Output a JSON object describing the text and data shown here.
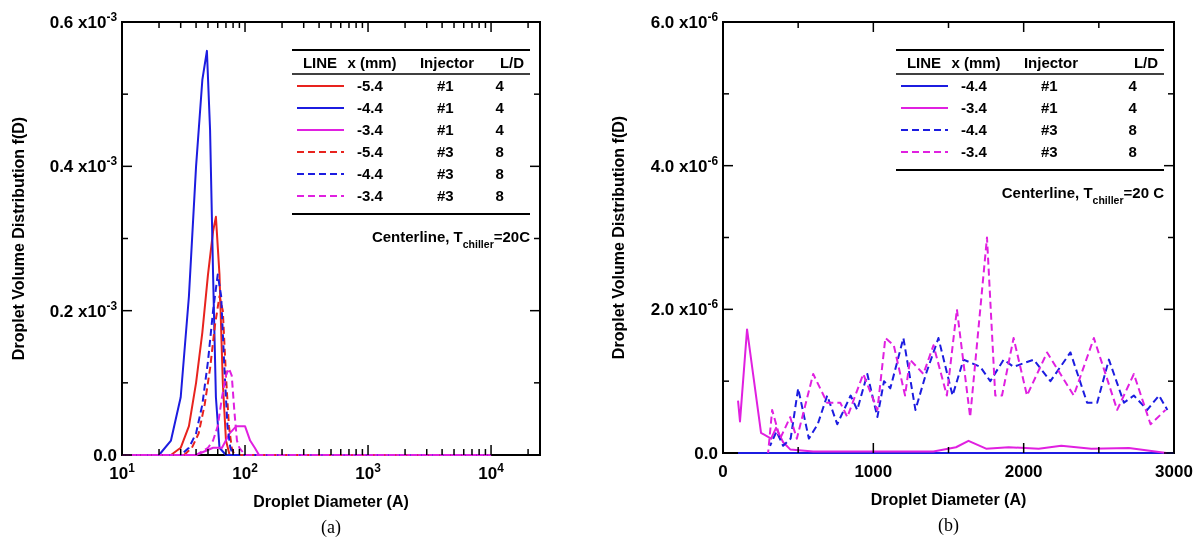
{
  "chart_data": [
    {
      "type": "line",
      "xlabel": "Droplet Diameter (A)",
      "ylabel": "Droplet Volume Distribution f(D)",
      "log": "x",
      "xlim": [
        10,
        25000
      ],
      "ylim": [
        0,
        0.0006
      ],
      "xticks": [
        {
          "value": 10,
          "label": "10$^{1}$"
        },
        {
          "value": 20,
          "label": null
        },
        {
          "value": 30,
          "label": null
        },
        {
          "value": 40,
          "label": null
        },
        {
          "value": 50,
          "label": null
        },
        {
          "value": 60,
          "label": null
        },
        {
          "value": 70,
          "label": null
        },
        {
          "value": 80,
          "label": null
        },
        {
          "value": 90,
          "label": null
        },
        {
          "value": 100,
          "label": "10$^{2}$"
        },
        {
          "value": 200,
          "label": null
        },
        {
          "value": 300,
          "label": null
        },
        {
          "value": 400,
          "label": null
        },
        {
          "value": 500,
          "label": null
        },
        {
          "value": 600,
          "label": null
        },
        {
          "value": 700,
          "label": null
        },
        {
          "value": 800,
          "label": null
        },
        {
          "value": 900,
          "label": null
        },
        {
          "value": 1000,
          "label": "10$^{3}$"
        },
        {
          "value": 2000,
          "label": null
        },
        {
          "value": 3000,
          "label": null
        },
        {
          "value": 4000,
          "label": null
        },
        {
          "value": 5000,
          "label": null
        },
        {
          "value": 6000,
          "label": null
        },
        {
          "value": 7000,
          "label": null
        },
        {
          "value": 8000,
          "label": null
        },
        {
          "value": 9000,
          "label": null
        },
        {
          "value": 10000,
          "label": "10$^{4}$"
        },
        {
          "value": 20000,
          "label": null
        }
      ],
      "yticks": [
        {
          "value": 0,
          "label": "0.0"
        },
        {
          "value": 0.0001,
          "label": null
        },
        {
          "value": 0.0002,
          "label": "0.2 x10$^{-3}$"
        },
        {
          "value": 0.0003,
          "label": null
        },
        {
          "value": 0.0004,
          "label": "0.4 x10$^{-3}$"
        },
        {
          "value": 0.0005,
          "label": null
        },
        {
          "value": 0.0006,
          "label": "0.6 x10$^{-3}$"
        }
      ],
      "legend": "top right",
      "legend_title": "LINE   x (mm)   Injector   L/D",
      "grid": false,
      "series": [
        {
          "name": "-5.4 #1 4",
          "color": "#e8231e",
          "line_style": "solid",
          "x": [
            10,
            25,
            30,
            35,
            40,
            45,
            50,
            55,
            58,
            62,
            66,
            70,
            75,
            100,
            10000
          ],
          "values": [
            0,
            0,
            1e-05,
            4e-05,
            0.0001,
            0.00017,
            0.00025,
            0.00031,
            0.00033,
            0.00025,
            0.0001,
            2e-05,
            0,
            0,
            0
          ]
        },
        {
          "name": "-4.4 #1 4",
          "color": "#1c1ce0",
          "line_style": "solid",
          "x": [
            10,
            20,
            25,
            30,
            35,
            40,
            45,
            49,
            52,
            55,
            58,
            62,
            70,
            100,
            10000
          ],
          "values": [
            0,
            0,
            2e-05,
            8e-05,
            0.00022,
            0.0004,
            0.00052,
            0.00056,
            0.00045,
            0.00025,
            8e-05,
            1e-05,
            0,
            0,
            0
          ]
        },
        {
          "name": "-3.4 #1 4",
          "color": "#e020e0",
          "line_style": "solid",
          "x": [
            10,
            40,
            55,
            65,
            75,
            85,
            94,
            100,
            110,
            120,
            130,
            140,
            10000
          ],
          "values": [
            0,
            0,
            1e-05,
            1e-05,
            3e-05,
            4e-05,
            4e-05,
            4e-05,
            2e-05,
            1e-05,
            0,
            0,
            0
          ]
        },
        {
          "name": "-5.4 #3 8",
          "color": "#e8231e",
          "line_style": "dashed",
          "x": [
            10,
            32,
            37,
            42,
            47,
            52,
            57,
            62,
            66,
            70,
            74,
            78,
            82,
            100,
            10000
          ],
          "values": [
            0,
            0,
            1e-05,
            3e-05,
            7e-05,
            0.00012,
            0.00018,
            0.00022,
            0.0002,
            0.00011,
            4e-05,
            1e-05,
            0,
            0,
            0
          ]
        },
        {
          "name": "-4.4 #3 8",
          "color": "#1c1ce0",
          "line_style": "dashed",
          "x": [
            10,
            30,
            35,
            40,
            45,
            50,
            55,
            60,
            64,
            68,
            72,
            76,
            80,
            100,
            10000
          ],
          "values": [
            0,
            0,
            1e-05,
            3e-05,
            7e-05,
            0.00013,
            0.0002,
            0.00025,
            0.00022,
            0.00012,
            4e-05,
            1e-05,
            0,
            0,
            0
          ]
        },
        {
          "name": "-3.4 #3 8",
          "color": "#e020e0",
          "line_style": "dashed",
          "x": [
            10,
            40,
            50,
            55,
            60,
            65,
            70,
            74,
            78,
            82,
            86,
            90,
            100,
            10000
          ],
          "values": [
            0,
            0,
            1e-05,
            2e-05,
            4e-05,
            8e-05,
            0.00011,
            0.00012,
            0.00011,
            6e-05,
            2e-05,
            1e-05,
            0,
            0
          ]
        }
      ],
      "annotations": [
        "Centerline, T$_{chiller}$=20C",
        "(a)"
      ]
    },
    {
      "type": "line",
      "xlabel": "Droplet Diameter (A)",
      "ylabel": "Droplet Volume Distribution f(D)",
      "xlim": [
        0,
        3000
      ],
      "ylim": [
        0,
        6e-06
      ],
      "xticks": [
        0,
        {
          "value": 500,
          "label": null
        },
        1000,
        {
          "value": 1500,
          "label": null
        },
        2000,
        {
          "value": 2500,
          "label": null
        },
        3000
      ],
      "yticks": [
        {
          "value": 0,
          "label": "0.0"
        },
        {
          "value": 1e-06,
          "label": null
        },
        {
          "value": 2e-06,
          "label": "2.0 x10$^{-6}$"
        },
        {
          "value": 3e-06,
          "label": null
        },
        {
          "value": 4e-06,
          "label": "4.0 x10$^{-6}$"
        },
        {
          "value": 5e-06,
          "label": null
        },
        {
          "value": 6e-06,
          "label": "6.0 x10$^{-6}$"
        }
      ],
      "legend": "top right",
      "legend_title": "LINE   x (mm)   Injector   L/D",
      "grid": false,
      "series": [
        {
          "name": "-4.4 #1 4",
          "color": "#1c1ce0",
          "line_style": "solid",
          "x": [
            100,
            3000
          ],
          "values": [
            0,
            0
          ]
        },
        {
          "name": "-3.4 #1 4",
          "color": "#e020e0",
          "line_style": "solid",
          "x": [
            100,
            113,
            160,
            200,
            253,
            320,
            353,
            400,
            447,
            600,
            1000,
            1400,
            1550,
            1633,
            1750,
            1900,
            2100,
            2250,
            2450,
            2700,
            2950
          ],
          "values": [
            7.3e-07,
            4.4e-07,
            1.72e-06,
            1.1e-06,
            2.8e-07,
            2e-07,
            3.5e-07,
            1.5e-07,
            5e-08,
            2e-08,
            2e-08,
            2e-08,
            8e-08,
            1.7e-07,
            6e-08,
            8e-08,
            6e-08,
            1e-07,
            6e-08,
            7e-08,
            0
          ]
        },
        {
          "name": "-4.4 #3 8",
          "color": "#1c1ce0",
          "line_style": "dashed",
          "x": [
            313,
            356,
            400,
            450,
            500,
            571,
            630,
            693,
            760,
            849,
            893,
            960,
            1027,
            1071,
            1113,
            1200,
            1280,
            1350,
            1433,
            1527,
            1600,
            1711,
            1778,
            1867,
            1933,
            2067,
            2178,
            2311,
            2422,
            2489,
            2567,
            2667,
            2733,
            2822,
            2900,
            2956
          ],
          "values": [
            1e-07,
            3e-07,
            1e-07,
            2e-07,
            9e-07,
            2e-07,
            4e-07,
            8e-07,
            4e-07,
            8e-07,
            6e-07,
            1.1e-06,
            5e-07,
            1e-06,
            9e-07,
            1.6e-06,
            6e-07,
            1.1e-06,
            1.6e-06,
            8e-07,
            1.3e-06,
            1.2e-06,
            1e-06,
            1.3e-06,
            1.2e-06,
            1.3e-06,
            1e-06,
            1.4e-06,
            7e-07,
            7e-07,
            1.3e-06,
            7e-07,
            8e-07,
            6e-07,
            8e-07,
            6e-07
          ]
        },
        {
          "name": "-3.4 #3 8",
          "color": "#e020e0",
          "line_style": "dashed",
          "x": [
            300,
            327,
            380,
            447,
            491,
            600,
            693,
            780,
            827,
            933,
            1027,
            1080,
            1136,
            1211,
            1244,
            1333,
            1400,
            1489,
            1556,
            1644,
            1756,
            1811,
            1856,
            1933,
            2022,
            2156,
            2333,
            2467,
            2622,
            2733,
            2844,
            2944
          ],
          "values": [
            0,
            6e-07,
            2e-07,
            5e-07,
            2e-07,
            1.1e-06,
            7e-07,
            7e-07,
            5e-07,
            1.1e-06,
            6e-07,
            1.6e-06,
            1.5e-06,
            8e-07,
            1.3e-06,
            1.1e-06,
            1.5e-06,
            8e-07,
            2e-06,
            5e-07,
            3e-06,
            8e-07,
            8e-07,
            1.6e-06,
            8e-07,
            1.4e-06,
            8e-07,
            1.6e-06,
            6e-07,
            1.1e-06,
            4e-07,
            6e-07
          ]
        }
      ],
      "annotations": [
        "Centerline, T$_{chiller}$=20 C",
        "(b)"
      ]
    }
  ]
}
